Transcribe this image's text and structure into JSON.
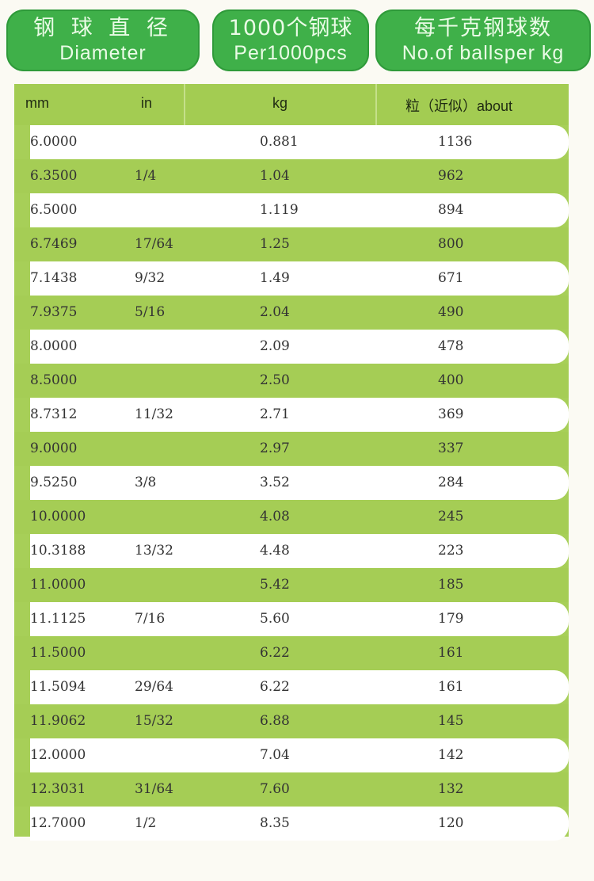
{
  "headers": [
    {
      "zh": "钢 球 直 径",
      "en": "Diameter"
    },
    {
      "zh": "1000个钢球",
      "en": "Per1000pcs"
    },
    {
      "zh": "每千克钢球数",
      "en": "No.of ballsper kg"
    }
  ],
  "columns": {
    "mm": "mm",
    "in": "in",
    "kg": "kg",
    "about": "粒（近似）about"
  },
  "rows": [
    {
      "mm": "6.0000",
      "in": "",
      "kg": "0.881",
      "about": "1136"
    },
    {
      "mm": "6.3500",
      "in": "1/4",
      "kg": "1.04",
      "about": "962"
    },
    {
      "mm": "6.5000",
      "in": "",
      "kg": "1.119",
      "about": "894"
    },
    {
      "mm": "6.7469",
      "in": "17/64",
      "kg": "1.25",
      "about": "800"
    },
    {
      "mm": "7.1438",
      "in": "9/32",
      "kg": "1.49",
      "about": "671"
    },
    {
      "mm": "7.9375",
      "in": "5/16",
      "kg": "2.04",
      "about": "490"
    },
    {
      "mm": "8.0000",
      "in": "",
      "kg": "2.09",
      "about": "478"
    },
    {
      "mm": "8.5000",
      "in": "",
      "kg": "2.50",
      "about": "400"
    },
    {
      "mm": "8.7312",
      "in": "11/32",
      "kg": "2.71",
      "about": "369"
    },
    {
      "mm": "9.0000",
      "in": "",
      "kg": "2.97",
      "about": "337"
    },
    {
      "mm": "9.5250",
      "in": "3/8",
      "kg": "3.52",
      "about": "284"
    },
    {
      "mm": "10.0000",
      "in": "",
      "kg": "4.08",
      "about": "245"
    },
    {
      "mm": "10.3188",
      "in": "13/32",
      "kg": "4.48",
      "about": "223"
    },
    {
      "mm": "11.0000",
      "in": "",
      "kg": "5.42",
      "about": "185"
    },
    {
      "mm": "11.1125",
      "in": "7/16",
      "kg": "5.60",
      "about": "179"
    },
    {
      "mm": "11.5000",
      "in": "",
      "kg": "6.22",
      "about": "161"
    },
    {
      "mm": "11.5094",
      "in": "29/64",
      "kg": "6.22",
      "about": "161"
    },
    {
      "mm": "11.9062",
      "in": "15/32",
      "kg": "6.88",
      "about": "145"
    },
    {
      "mm": "12.0000",
      "in": "",
      "kg": "7.04",
      "about": "142"
    },
    {
      "mm": "12.3031",
      "in": "31/64",
      "kg": "7.60",
      "about": "132"
    },
    {
      "mm": "12.7000",
      "in": "1/2",
      "kg": "8.35",
      "about": "120"
    }
  ]
}
